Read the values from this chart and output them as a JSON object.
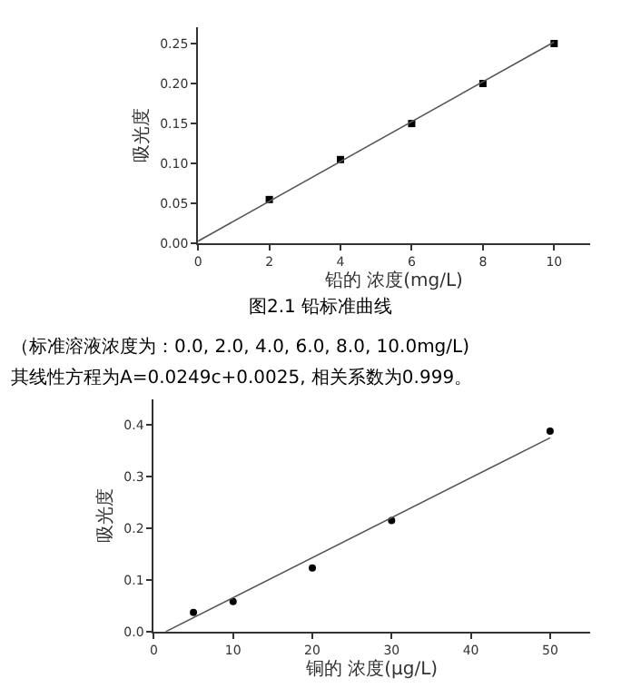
{
  "chart_data": [
    {
      "type": "scatter",
      "xlabel": "铅的 浓度(mg/L)",
      "ylabel": "吸光度",
      "xlim": [
        0,
        11
      ],
      "ylim": [
        0,
        0.27
      ],
      "xticks": [
        0,
        2,
        4,
        6,
        8,
        10
      ],
      "yticks": [
        {
          "value": 0,
          "label": "0.00"
        },
        {
          "value": 0.05,
          "label": "0.05"
        },
        {
          "value": 0.1,
          "label": "0.10"
        },
        {
          "value": 0.15,
          "label": "0.15"
        },
        {
          "value": 0.2,
          "label": "0.20"
        },
        {
          "value": 0.25,
          "label": "0.25"
        }
      ],
      "series": [
        {
          "marker": "square",
          "color": "#000000",
          "x": [
            2,
            4,
            6,
            8,
            10
          ],
          "values": [
            0.055,
            0.105,
            0.15,
            0.2,
            0.25
          ]
        },
        {
          "type": "line",
          "marker": "none",
          "color": "#555555",
          "x": [
            0,
            10
          ],
          "values": [
            0.003,
            0.252
          ]
        }
      ],
      "annotations": [
        "图2.1 铅标准曲线",
        "（标准溶液浓度为：0.0, 2.0, 4.0, 6.0, 8.0, 10.0mg/L)",
        "其线性方程为A=0.0249c+0.0025, 相关系数为0.999。"
      ]
    },
    {
      "type": "scatter",
      "xlabel": "铜的 浓度(μg/L)",
      "ylabel": "吸光度",
      "xlim": [
        0,
        55
      ],
      "ylim": [
        0,
        0.45
      ],
      "xticks": [
        0,
        10,
        20,
        30,
        40,
        50
      ],
      "yticks": [
        {
          "value": 0,
          "label": "0.0"
        },
        {
          "value": 0.1,
          "label": "0.1"
        },
        {
          "value": 0.2,
          "label": "0.2"
        },
        {
          "value": 0.3,
          "label": "0.3"
        },
        {
          "value": 0.4,
          "label": "0.4"
        }
      ],
      "series": [
        {
          "marker": "circle",
          "color": "#000000",
          "x": [
            5,
            10,
            20,
            30,
            50
          ],
          "values": [
            0.037,
            0.058,
            0.123,
            0.215,
            0.388
          ]
        },
        {
          "type": "line",
          "marker": "none",
          "color": "#555555",
          "x": [
            1.5,
            50
          ],
          "values": [
            0,
            0.375
          ]
        }
      ]
    }
  ]
}
